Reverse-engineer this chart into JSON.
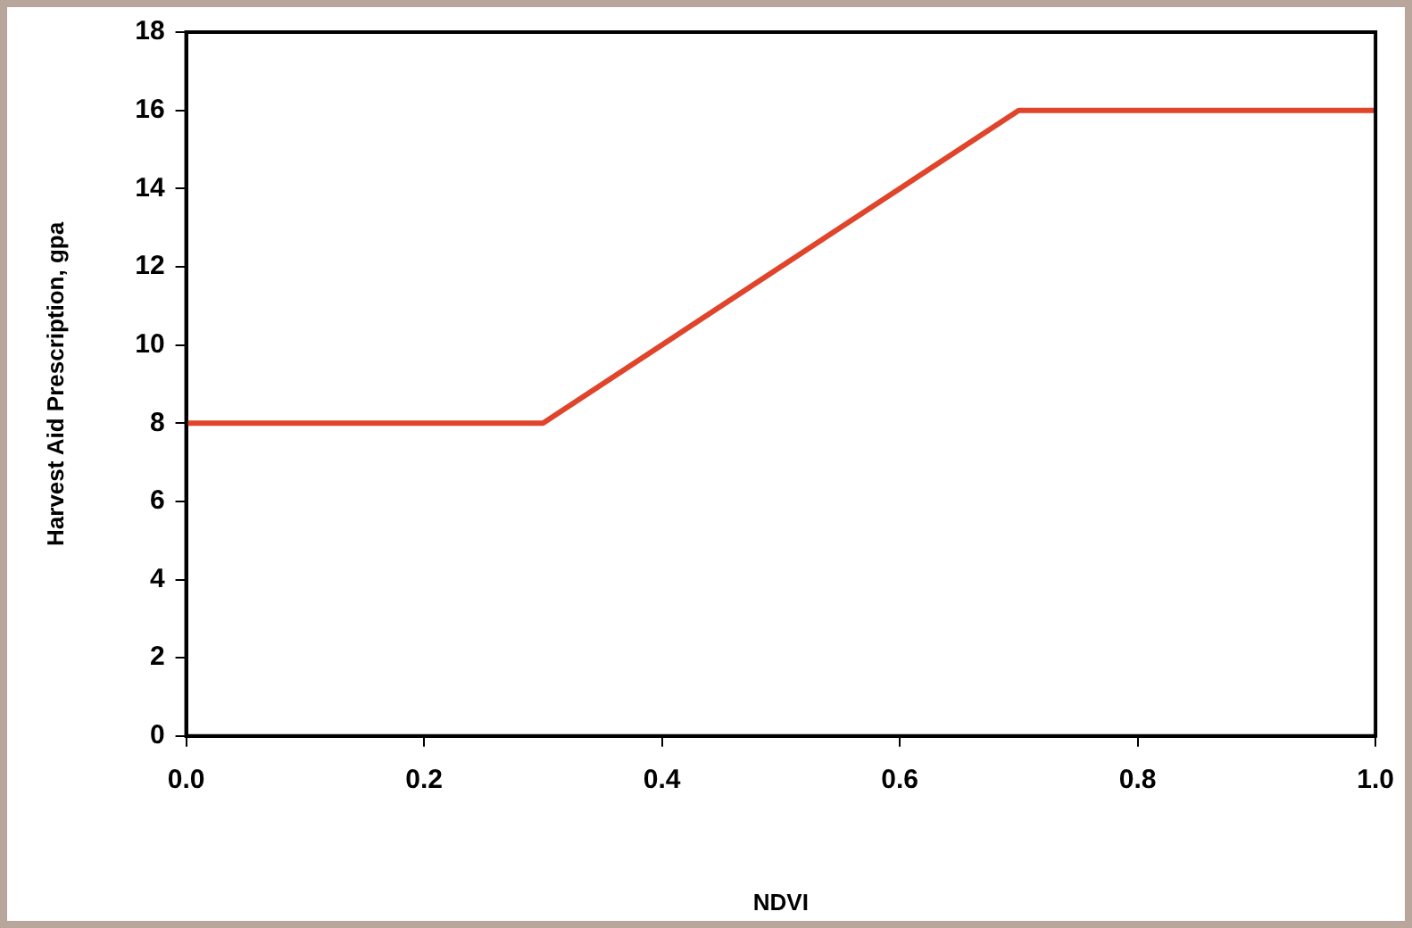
{
  "chart_data": {
    "type": "line",
    "xlabel": "NDVI",
    "ylabel": "Harvest Aid Prescription, gpa",
    "x": [
      0,
      0.3,
      0.7,
      1.0
    ],
    "series": [
      {
        "color": "#e0442a",
        "values": [
          8,
          8,
          16,
          16
        ]
      }
    ],
    "xlim": [
      0,
      1
    ],
    "xticks": [
      {
        "value": 0,
        "label": "0.0"
      },
      {
        "value": 0.2,
        "label": "0.2"
      },
      {
        "value": 0.4,
        "label": "0.4"
      },
      {
        "value": 0.6,
        "label": "0.6"
      },
      {
        "value": 0.8,
        "label": "0.8"
      },
      {
        "value": 1,
        "label": "1.0"
      }
    ],
    "ylim": [
      0,
      18
    ],
    "yticks": [
      0,
      2,
      4,
      6,
      8,
      10,
      12,
      14,
      16,
      18
    ],
    "grid": false,
    "legend": false,
    "marker": "none",
    "line_style": "solid"
  }
}
